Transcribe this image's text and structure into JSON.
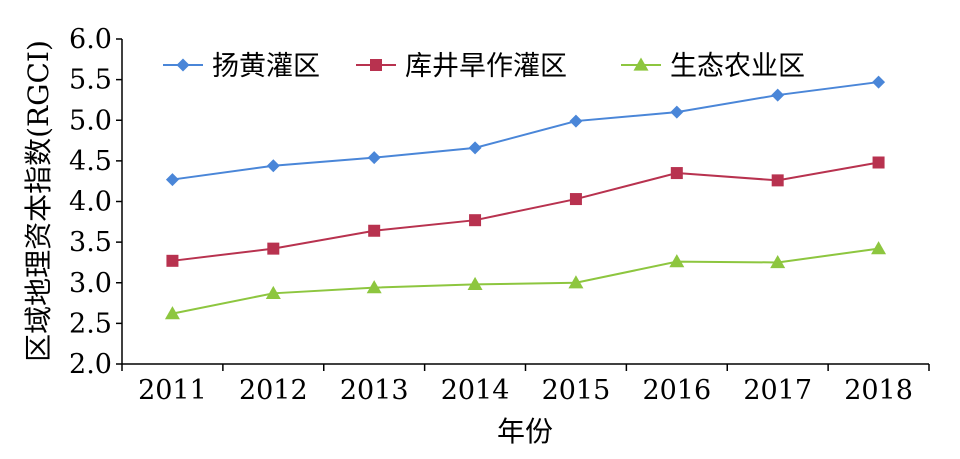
{
  "chart_data": {
    "type": "line",
    "title": "",
    "xlabel": "年份",
    "ylabel": "区域地理资本指数(RGCI)",
    "categories": [
      "2011",
      "2012",
      "2013",
      "2014",
      "2015",
      "2016",
      "2017",
      "2018"
    ],
    "ylim": [
      2.0,
      6.0
    ],
    "ytick_labels": [
      "2.0",
      "2.5",
      "3.0",
      "3.5",
      "4.0",
      "4.5",
      "5.0",
      "5.5",
      "6.0"
    ],
    "grid": false,
    "legend_position": "top",
    "series": [
      {
        "name": "扬黄灌区",
        "color": "#4A86D8",
        "marker": "diamond",
        "values": [
          4.27,
          4.44,
          4.54,
          4.66,
          4.99,
          5.1,
          5.31,
          5.47
        ]
      },
      {
        "name": "库井旱作灌区",
        "color": "#B8324F",
        "marker": "square",
        "values": [
          3.27,
          3.42,
          3.64,
          3.77,
          4.03,
          4.35,
          4.26,
          4.48
        ]
      },
      {
        "name": "生态农业区",
        "color": "#8DC63F",
        "marker": "triangle",
        "values": [
          2.62,
          2.87,
          2.94,
          2.98,
          3.0,
          3.26,
          3.25,
          3.42
        ]
      }
    ]
  }
}
